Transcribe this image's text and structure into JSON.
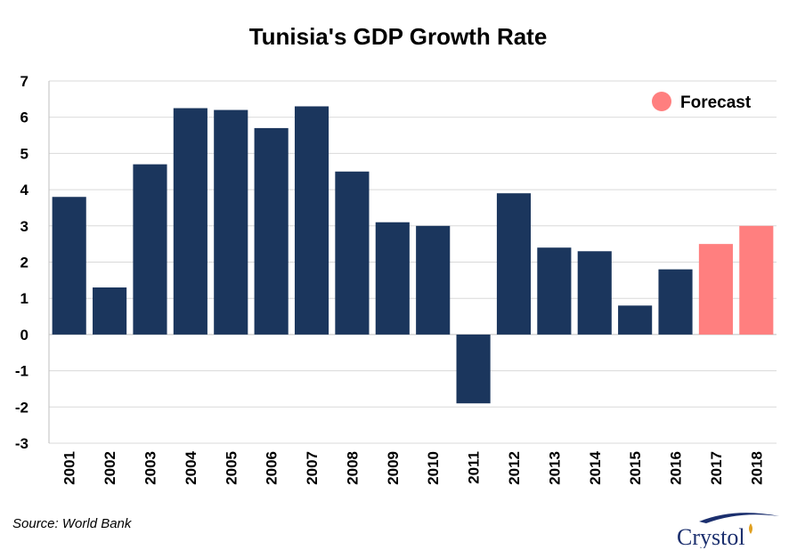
{
  "chart_data": {
    "type": "bar",
    "title": "Tunisia's GDP Growth Rate",
    "xlabel": "",
    "ylabel": "",
    "categories": [
      "2001",
      "2002",
      "2003",
      "2004",
      "2005",
      "2006",
      "2007",
      "2008",
      "2009",
      "2010",
      "2011",
      "2012",
      "2013",
      "2014",
      "2015",
      "2016",
      "2017",
      "2018"
    ],
    "values": [
      3.8,
      1.3,
      4.7,
      6.25,
      6.2,
      5.7,
      6.3,
      4.5,
      3.1,
      3.0,
      -1.9,
      3.9,
      2.4,
      2.3,
      0.8,
      1.8,
      2.5,
      3.0
    ],
    "forecast": [
      false,
      false,
      false,
      false,
      false,
      false,
      false,
      false,
      false,
      false,
      false,
      false,
      false,
      false,
      false,
      false,
      true,
      true
    ],
    "ylim": [
      -3,
      7
    ],
    "yticks": [
      "7",
      "6",
      "5",
      "4",
      "3",
      "2",
      "1",
      "0",
      "-1",
      "-2",
      "-3"
    ],
    "grid": true,
    "legend": {
      "label": "Forecast",
      "placement": "top-right"
    },
    "colors": {
      "actual": "#1b365d",
      "forecast": "#ff7f7f",
      "grid": "#d9d9d9"
    }
  },
  "source": "Source: World Bank",
  "logo": {
    "text": "Crystol"
  }
}
